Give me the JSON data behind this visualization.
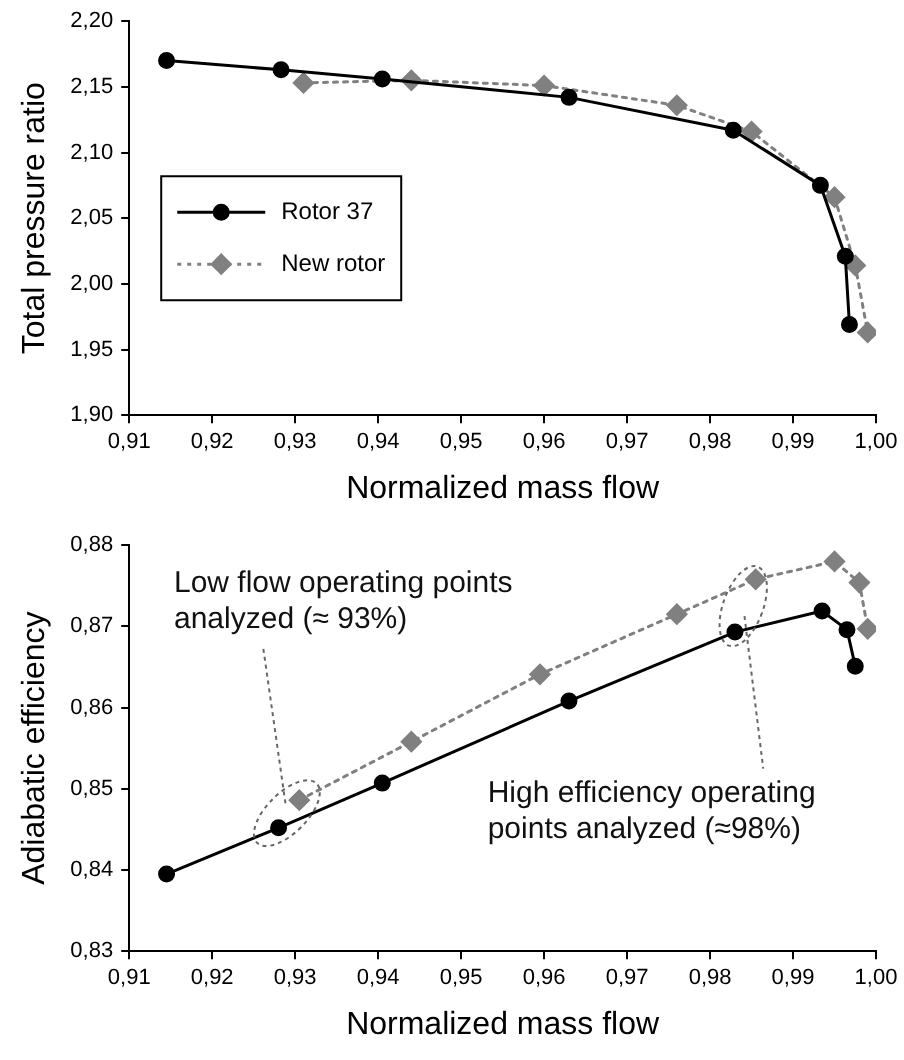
{
  "chart_data": [
    {
      "type": "line",
      "xlabel": "Normalized mass flow",
      "ylabel": "Total pressure ratio",
      "xlim": [
        0.91,
        1.0
      ],
      "xticks": [
        {
          "value": 0.91,
          "label": "0,91"
        },
        {
          "value": 0.92,
          "label": "0,92"
        },
        {
          "value": 0.93,
          "label": "0,93"
        },
        {
          "value": 0.94,
          "label": "0,94"
        },
        {
          "value": 0.95,
          "label": "0,95"
        },
        {
          "value": 0.96,
          "label": "0,96"
        },
        {
          "value": 0.97,
          "label": "0,97"
        },
        {
          "value": 0.98,
          "label": "0,98"
        },
        {
          "value": 0.99,
          "label": "0,99"
        },
        {
          "value": 1.0,
          "label": "1,00"
        }
      ],
      "ylim": [
        1.9,
        2.2
      ],
      "yticks": [
        {
          "value": 1.9,
          "label": "1,90"
        },
        {
          "value": 1.95,
          "label": "1,95"
        },
        {
          "value": 2.0,
          "label": "2,00"
        },
        {
          "value": 2.05,
          "label": "2,05"
        },
        {
          "value": 2.1,
          "label": "2,10"
        },
        {
          "value": 2.15,
          "label": "2,15"
        },
        {
          "value": 2.2,
          "label": "2,20"
        }
      ],
      "grid": false,
      "legend": "left",
      "series": [
        {
          "name": "Rotor 37",
          "color": "#000000",
          "marker": "circle",
          "line_style": "solid",
          "x": [
            0.9145,
            0.9283,
            0.9405,
            0.963,
            0.9828,
            0.9933,
            0.9963,
            0.9968
          ],
          "values": [
            2.17,
            2.163,
            2.156,
            2.142,
            2.117,
            2.075,
            2.021,
            1.969
          ]
        },
        {
          "name": "New rotor",
          "color": "#808080",
          "marker": "diamond",
          "line_style": "dotted",
          "x": [
            0.931,
            0.944,
            0.96,
            0.976,
            0.985,
            0.995,
            0.9975,
            0.999
          ],
          "values": [
            2.153,
            2.155,
            2.151,
            2.136,
            2.116,
            2.066,
            2.014,
            1.963
          ]
        }
      ]
    },
    {
      "type": "line",
      "xlabel": "Normalized mass flow",
      "ylabel": "Adiabatic efficiency",
      "xlim": [
        0.91,
        1.0
      ],
      "xticks": [
        {
          "value": 0.91,
          "label": "0,91"
        },
        {
          "value": 0.92,
          "label": "0,92"
        },
        {
          "value": 0.93,
          "label": "0,93"
        },
        {
          "value": 0.94,
          "label": "0,94"
        },
        {
          "value": 0.95,
          "label": "0,95"
        },
        {
          "value": 0.96,
          "label": "0,96"
        },
        {
          "value": 0.97,
          "label": "0,97"
        },
        {
          "value": 0.98,
          "label": "0,98"
        },
        {
          "value": 0.99,
          "label": "0,99"
        },
        {
          "value": 1.0,
          "label": "1,00"
        }
      ],
      "ylim": [
        0.83,
        0.88
      ],
      "yticks": [
        {
          "value": 0.83,
          "label": "0,83"
        },
        {
          "value": 0.84,
          "label": "0,84"
        },
        {
          "value": 0.85,
          "label": "0,85"
        },
        {
          "value": 0.86,
          "label": "0,86"
        },
        {
          "value": 0.87,
          "label": "0,87"
        },
        {
          "value": 0.88,
          "label": "0,88"
        }
      ],
      "grid": false,
      "legend": false,
      "annotations": [
        {
          "text": "Low flow operating points analyzed (≈ 93%)",
          "x": 0.929,
          "y": 0.847
        },
        {
          "text": "High efficiency operating points analyzed (≈98%)",
          "x": 0.984,
          "y": 0.8725
        }
      ],
      "series": [
        {
          "color": "#000000",
          "marker": "circle",
          "line_style": "solid",
          "x": [
            0.9145,
            0.928,
            0.9405,
            0.963,
            0.983,
            0.9935,
            0.9965,
            0.9975
          ],
          "values": [
            0.8395,
            0.8452,
            0.8507,
            0.8608,
            0.8693,
            0.8719,
            0.8696,
            0.8651
          ]
        },
        {
          "color": "#808080",
          "marker": "diamond",
          "line_style": "dotted",
          "x": [
            0.9305,
            0.944,
            0.9595,
            0.976,
            0.9855,
            0.995,
            0.998,
            0.999
          ],
          "values": [
            0.8486,
            0.8558,
            0.8641,
            0.8715,
            0.8758,
            0.878,
            0.8754,
            0.8697
          ]
        }
      ]
    }
  ]
}
